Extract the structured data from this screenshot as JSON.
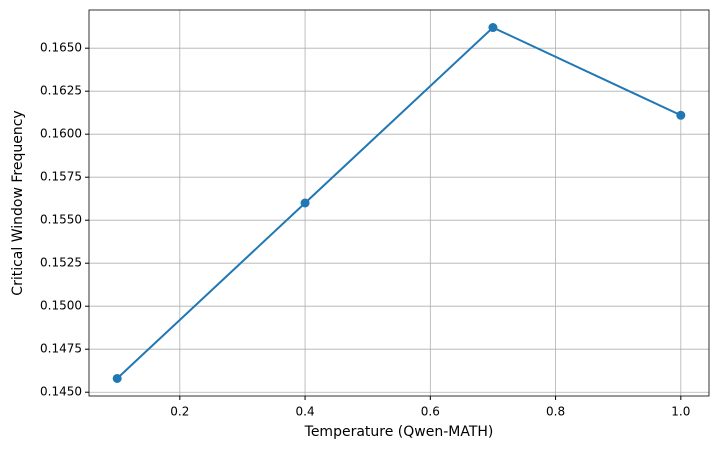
{
  "chart_data": {
    "type": "line",
    "xlabel": "Temperature (Qwen-MATH)",
    "ylabel": "Critical Window Frequency",
    "x": [
      0.1,
      0.4,
      0.7,
      1.0
    ],
    "values": [
      0.1458,
      0.156,
      0.1662,
      0.1611
    ],
    "color": "#1f77b4",
    "xlim": [
      0.055,
      1.045
    ],
    "ylim": [
      0.14478,
      0.16722
    ],
    "xticks": [
      0.2,
      0.4,
      0.6,
      0.8,
      {
        "value": 1.0,
        "label": "1.0"
      }
    ],
    "yticks": [
      {
        "value": 0.145,
        "label": "0.1450"
      },
      0.1475,
      {
        "value": 0.15,
        "label": "0.1500"
      },
      0.1525,
      {
        "value": 0.155,
        "label": "0.1550"
      },
      0.1575,
      {
        "value": 0.16,
        "label": "0.1600"
      },
      0.1625,
      {
        "value": 0.165,
        "label": "0.1650"
      }
    ],
    "grid": true
  }
}
